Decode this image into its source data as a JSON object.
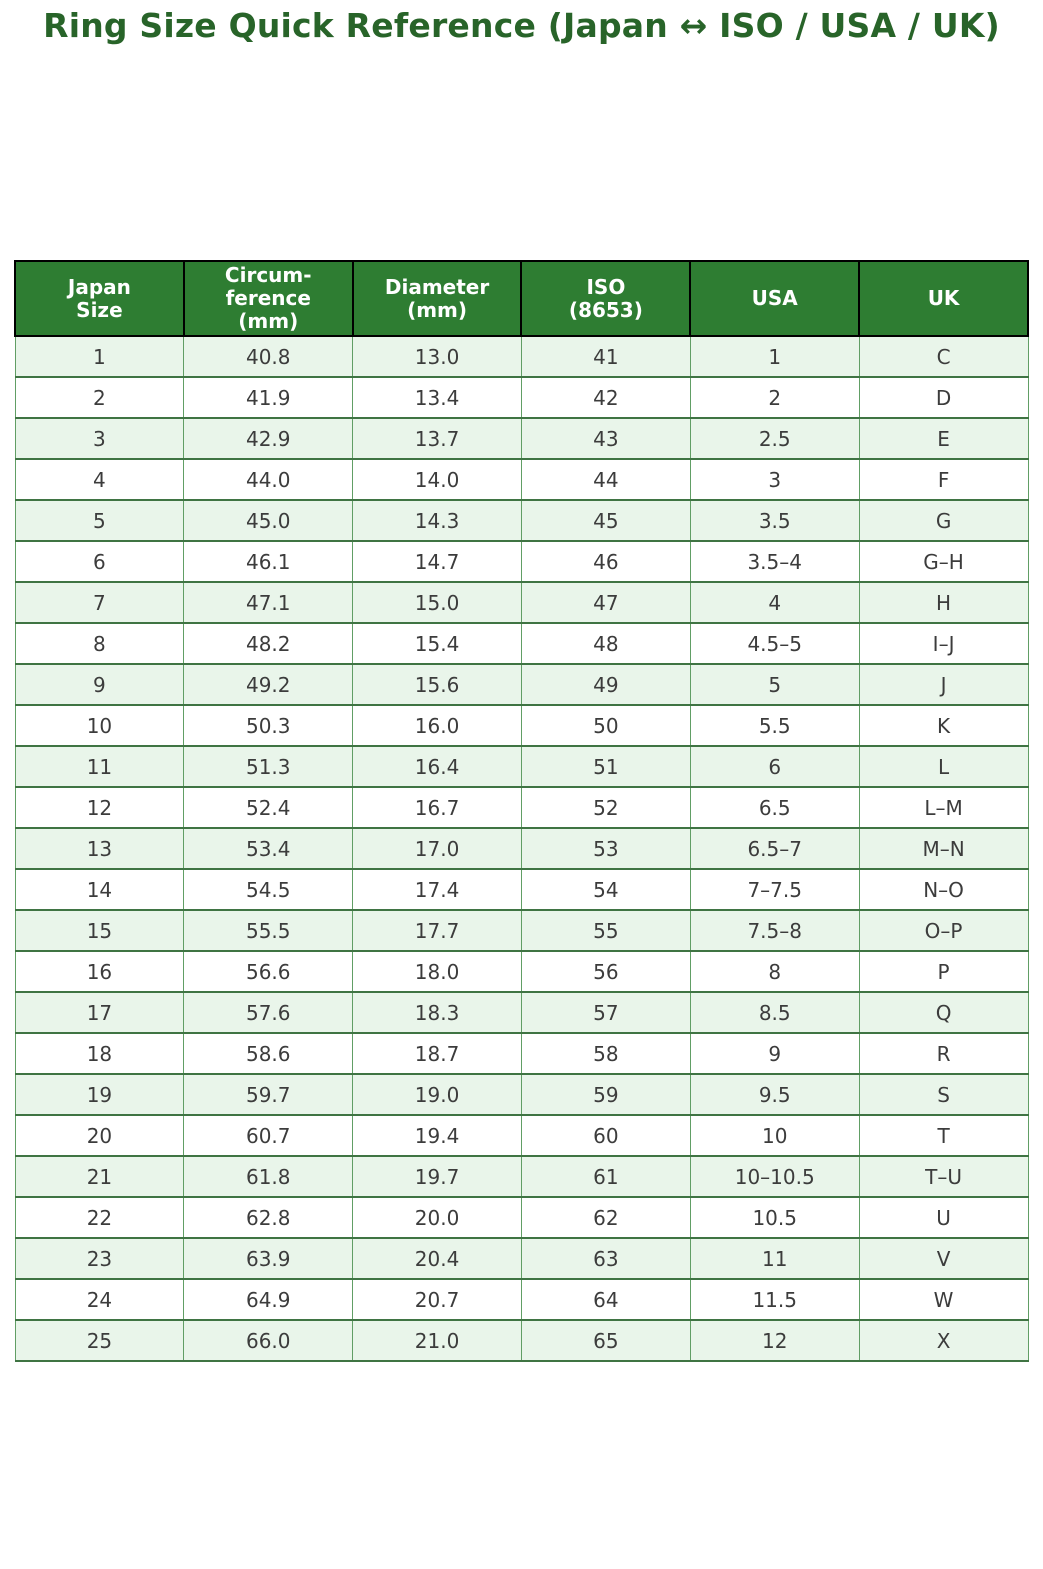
{
  "page": {
    "title": "Ring Size Quick Reference (Japan ↔ ISO / USA / UK)"
  },
  "chart_data": {
    "type": "table",
    "title": "Ring Size Quick Reference (Japan ↔ ISO / USA / UK)",
    "columns": [
      "Japan\nSize",
      "Circum-\nference\n(mm)",
      "Diameter\n(mm)",
      "ISO\n(8653)",
      "USA",
      "UK"
    ],
    "rows": [
      [
        "1",
        "40.8",
        "13.0",
        "41",
        "1",
        "C"
      ],
      [
        "2",
        "41.9",
        "13.4",
        "42",
        "2",
        "D"
      ],
      [
        "3",
        "42.9",
        "13.7",
        "43",
        "2.5",
        "E"
      ],
      [
        "4",
        "44.0",
        "14.0",
        "44",
        "3",
        "F"
      ],
      [
        "5",
        "45.0",
        "14.3",
        "45",
        "3.5",
        "G"
      ],
      [
        "6",
        "46.1",
        "14.7",
        "46",
        "3.5–4",
        "G–H"
      ],
      [
        "7",
        "47.1",
        "15.0",
        "47",
        "4",
        "H"
      ],
      [
        "8",
        "48.2",
        "15.4",
        "48",
        "4.5–5",
        "I–J"
      ],
      [
        "9",
        "49.2",
        "15.6",
        "49",
        "5",
        "J"
      ],
      [
        "10",
        "50.3",
        "16.0",
        "50",
        "5.5",
        "K"
      ],
      [
        "11",
        "51.3",
        "16.4",
        "51",
        "6",
        "L"
      ],
      [
        "12",
        "52.4",
        "16.7",
        "52",
        "6.5",
        "L–M"
      ],
      [
        "13",
        "53.4",
        "17.0",
        "53",
        "6.5–7",
        "M–N"
      ],
      [
        "14",
        "54.5",
        "17.4",
        "54",
        "7–7.5",
        "N–O"
      ],
      [
        "15",
        "55.5",
        "17.7",
        "55",
        "7.5–8",
        "O–P"
      ],
      [
        "16",
        "56.6",
        "18.0",
        "56",
        "8",
        "P"
      ],
      [
        "17",
        "57.6",
        "18.3",
        "57",
        "8.5",
        "Q"
      ],
      [
        "18",
        "58.6",
        "18.7",
        "58",
        "9",
        "R"
      ],
      [
        "19",
        "59.7",
        "19.0",
        "59",
        "9.5",
        "S"
      ],
      [
        "20",
        "60.7",
        "19.4",
        "60",
        "10",
        "T"
      ],
      [
        "21",
        "61.8",
        "19.7",
        "61",
        "10–10.5",
        "T–U"
      ],
      [
        "22",
        "62.8",
        "20.0",
        "62",
        "10.5",
        "U"
      ],
      [
        "23",
        "63.9",
        "20.4",
        "63",
        "11",
        "V"
      ],
      [
        "24",
        "64.9",
        "20.7",
        "64",
        "11.5",
        "W"
      ],
      [
        "25",
        "66.0",
        "21.0",
        "65",
        "12",
        "X"
      ]
    ]
  },
  "colors": {
    "title_green": "#286429",
    "header_bg": "#2e7d32",
    "header_text": "#ffffff",
    "header_border": "#000000",
    "row_alt_bg": "#e9f5ea",
    "row_bg": "#ffffff",
    "grid_horizontal": "#3f7443",
    "grid_vertical": "#619e65",
    "cell_text": "#3c3c3c"
  }
}
